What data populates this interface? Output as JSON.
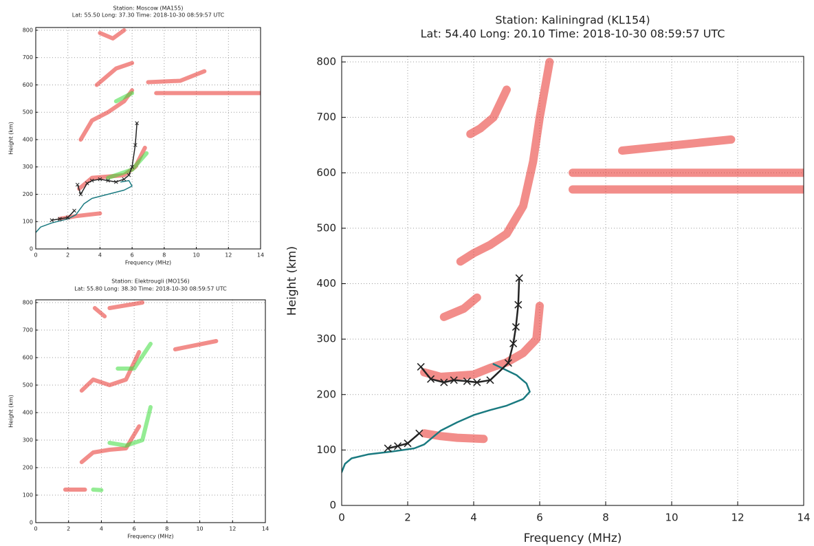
{
  "chart_data": [
    {
      "type": "scatter",
      "title": "Station: Moscow (MA155)",
      "subtitle": "Lat: 55.50 Long: 37.30 Time: 2018-10-30 08:59:57 UTC",
      "x_label": "Frequency (MHz)",
      "y_label": "Height (km)",
      "xlim": [
        0,
        14
      ],
      "ylim": [
        0,
        810
      ],
      "xticks": [
        0,
        2,
        4,
        6,
        8,
        10,
        12,
        14
      ],
      "yticks": [
        0,
        100,
        200,
        300,
        400,
        500,
        600,
        700,
        800
      ],
      "grid": true,
      "series": [
        {
          "color": "#e8302a",
          "line_style": "band",
          "x": [
            1.5,
            2.5,
            4
          ],
          "values": [
            110,
            120,
            130
          ]
        },
        {
          "color": "#e8302a",
          "line_style": "band",
          "x": [
            2.7,
            3.5,
            4.5,
            5.5,
            6.2,
            6.8
          ],
          "values": [
            220,
            260,
            265,
            270,
            300,
            370
          ]
        },
        {
          "color": "#e8302a",
          "line_style": "band",
          "x": [
            2.8,
            3.5,
            4.5,
            5.5,
            6
          ],
          "values": [
            400,
            470,
            500,
            540,
            580
          ]
        },
        {
          "color": "#e8302a",
          "line_style": "band",
          "x": [
            3.8,
            5,
            6
          ],
          "values": [
            600,
            660,
            680
          ]
        },
        {
          "color": "#e8302a",
          "line_style": "band",
          "x": [
            7.5,
            14
          ],
          "values": [
            570,
            570
          ]
        },
        {
          "color": "#e8302a",
          "line_style": "band",
          "x": [
            7,
            9,
            10.5
          ],
          "values": [
            610,
            615,
            650
          ]
        },
        {
          "color": "#e8302a",
          "line_style": "band",
          "x": [
            4,
            4.8,
            5.5
          ],
          "values": [
            790,
            770,
            800
          ]
        },
        {
          "color": "#3ddc3d",
          "line_style": "band",
          "x": [
            4.5,
            6,
            6.9
          ],
          "values": [
            260,
            290,
            350
          ]
        },
        {
          "color": "#3ddc3d",
          "line_style": "band",
          "x": [
            5,
            6
          ],
          "values": [
            540,
            570
          ]
        },
        {
          "color": "#1a7a80",
          "line_style": "solid",
          "x": [
            0,
            0.3,
            1,
            2,
            2.5,
            3,
            3.5,
            4.5,
            5.5,
            6,
            5.8,
            5.3
          ],
          "values": [
            60,
            80,
            95,
            110,
            125,
            165,
            185,
            200,
            215,
            230,
            250,
            245
          ]
        },
        {
          "color": "#222222",
          "line_style": "solid",
          "marker": "x",
          "x": [
            1,
            1.5,
            2,
            2.4
          ],
          "values": [
            105,
            110,
            115,
            140
          ]
        },
        {
          "color": "#222222",
          "line_style": "solid",
          "marker": "x",
          "x": [
            2.6,
            2.8,
            3.2,
            3.5,
            4,
            4.5,
            5,
            5.5,
            5.8,
            6,
            6.2,
            6.3
          ],
          "values": [
            235,
            200,
            240,
            250,
            255,
            250,
            245,
            255,
            270,
            300,
            380,
            460
          ]
        }
      ]
    },
    {
      "type": "scatter",
      "title": "Station: Elektrougli (MO156)",
      "subtitle": "Lat: 55.80 Long: 38.30 Time: 2018-10-30 08:59:57 UTC",
      "x_label": "Frequency (MHz)",
      "y_label": "Height (km)",
      "xlim": [
        0,
        14
      ],
      "ylim": [
        0,
        810
      ],
      "xticks": [
        0,
        2,
        4,
        6,
        8,
        10,
        12,
        14
      ],
      "yticks": [
        0,
        100,
        200,
        300,
        400,
        500,
        600,
        700,
        800
      ],
      "grid": true,
      "series": [
        {
          "color": "#e8302a",
          "line_style": "band",
          "x": [
            1.8,
            3
          ],
          "values": [
            120,
            120
          ]
        },
        {
          "color": "#e8302a",
          "line_style": "band",
          "x": [
            2.8,
            3.5,
            4.5,
            5.5,
            6.3
          ],
          "values": [
            220,
            255,
            265,
            270,
            350
          ]
        },
        {
          "color": "#e8302a",
          "line_style": "band",
          "x": [
            2.8,
            3.5,
            4.5,
            5.5,
            6.3
          ],
          "values": [
            480,
            520,
            500,
            520,
            620
          ]
        },
        {
          "color": "#e8302a",
          "line_style": "band",
          "x": [
            3.6,
            4.2
          ],
          "values": [
            780,
            750
          ]
        },
        {
          "color": "#e8302a",
          "line_style": "band",
          "x": [
            8.5,
            11
          ],
          "values": [
            630,
            660
          ]
        },
        {
          "color": "#e8302a",
          "line_style": "band",
          "x": [
            4.5,
            6.5
          ],
          "values": [
            780,
            800
          ]
        },
        {
          "color": "#3ddc3d",
          "line_style": "band",
          "x": [
            4.5,
            5.5,
            6.5,
            7
          ],
          "values": [
            290,
            280,
            300,
            420
          ]
        },
        {
          "color": "#3ddc3d",
          "line_style": "band",
          "x": [
            5,
            6,
            7
          ],
          "values": [
            560,
            560,
            650
          ]
        },
        {
          "color": "#3ddc3d",
          "line_style": "band",
          "x": [
            3.5,
            4
          ],
          "values": [
            120,
            118
          ]
        }
      ]
    },
    {
      "type": "scatter",
      "title": "Station: Kaliningrad (KL154)",
      "subtitle": "Lat: 54.40 Long: 20.10 Time: 2018-10-30 08:59:57 UTC",
      "x_label": "Frequency (MHz)",
      "y_label": "Height (km)",
      "xlim": [
        0,
        14
      ],
      "ylim": [
        0,
        810
      ],
      "xticks": [
        0,
        2,
        4,
        6,
        8,
        10,
        12,
        14
      ],
      "yticks": [
        0,
        100,
        200,
        300,
        400,
        500,
        600,
        700,
        800
      ],
      "grid": true,
      "series": [
        {
          "color": "#e8302a",
          "line_style": "band",
          "x": [
            2.5,
            3,
            4,
            4.5,
            5,
            5.5,
            5.9,
            6
          ],
          "values": [
            240,
            232,
            236,
            248,
            258,
            275,
            300,
            360
          ]
        },
        {
          "color": "#e8302a",
          "line_style": "band",
          "x": [
            2.5,
            3,
            3.5,
            4.3
          ],
          "values": [
            130,
            125,
            122,
            120
          ]
        },
        {
          "color": "#e8302a",
          "line_style": "band",
          "x": [
            3.6,
            4,
            4.5,
            5,
            5.5,
            5.8,
            6,
            6.3
          ],
          "values": [
            440,
            455,
            470,
            490,
            540,
            620,
            700,
            800
          ]
        },
        {
          "color": "#e8302a",
          "line_style": "band",
          "x": [
            3.9,
            4.2,
            4.6,
            5
          ],
          "values": [
            670,
            680,
            700,
            750
          ]
        },
        {
          "color": "#e8302a",
          "line_style": "band",
          "x": [
            7,
            14
          ],
          "values": [
            600,
            600
          ]
        },
        {
          "color": "#e8302a",
          "line_style": "band",
          "x": [
            7,
            14
          ],
          "values": [
            570,
            570
          ]
        },
        {
          "color": "#e8302a",
          "line_style": "band",
          "x": [
            8.5,
            11.8
          ],
          "values": [
            640,
            660
          ]
        },
        {
          "color": "#e8302a",
          "line_style": "band",
          "x": [
            3.1,
            3.7,
            4.1
          ],
          "values": [
            340,
            355,
            375
          ]
        },
        {
          "color": "#1a7a80",
          "line_style": "solid",
          "x": [
            0,
            0.1,
            0.3,
            0.8,
            1.5,
            2.2,
            2.5,
            3,
            3.5,
            4,
            4.5,
            5,
            5.5,
            5.7,
            5.6,
            5.3,
            4.6
          ],
          "values": [
            60,
            75,
            85,
            92,
            97,
            103,
            110,
            135,
            150,
            163,
            172,
            180,
            192,
            205,
            220,
            235,
            255
          ]
        },
        {
          "color": "#222222",
          "line_style": "solid",
          "marker": "x",
          "x": [
            1.4,
            1.7,
            2,
            2.35
          ],
          "values": [
            103,
            107,
            112,
            130
          ]
        },
        {
          "color": "#222222",
          "line_style": "solid",
          "marker": "x",
          "x": [
            2.4,
            2.7,
            3.1,
            3.4,
            3.8,
            4.1,
            4.5,
            5.05,
            5.2,
            5.28,
            5.35,
            5.38
          ],
          "values": [
            250,
            228,
            222,
            226,
            224,
            222,
            226,
            257,
            292,
            322,
            362,
            410
          ]
        }
      ]
    }
  ]
}
